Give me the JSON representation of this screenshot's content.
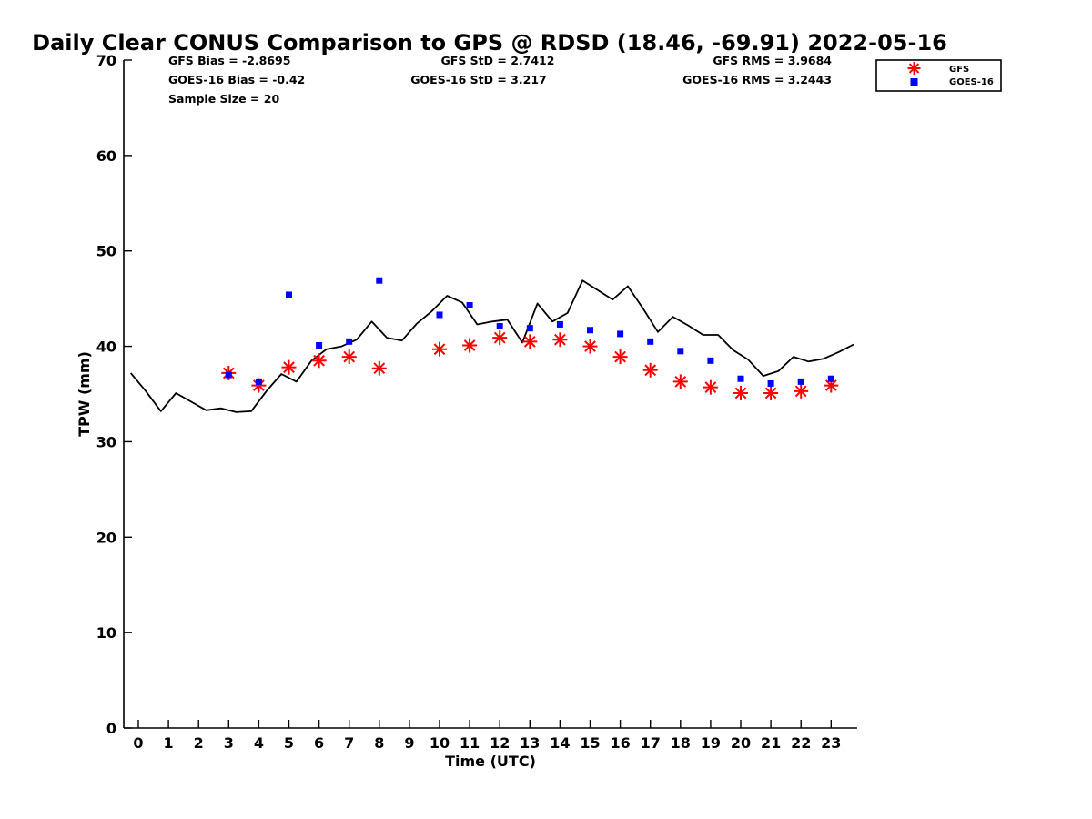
{
  "chart_data": {
    "type": "scatter",
    "title": "Daily Clear CONUS Comparison to GPS @ RDSD (18.46, -69.91) 2022-05-16",
    "xlabel": "Time (UTC)",
    "ylabel": "TPW (mm)",
    "xlim": [
      -0.5,
      23.75
    ],
    "ylim": [
      0,
      70
    ],
    "xticks": [
      "0",
      "1",
      "2",
      "3",
      "4",
      "5",
      "6",
      "7",
      "8",
      "9",
      "10",
      "11",
      "12",
      "13",
      "14",
      "15",
      "16",
      "17",
      "18",
      "19",
      "20",
      "21",
      "22",
      "23"
    ],
    "yticks": [
      "0",
      "10",
      "20",
      "30",
      "40",
      "50",
      "60",
      "70"
    ],
    "grid": false,
    "legend_position": "top-right",
    "stats": {
      "gfs_bias": "GFS Bias = -2.8695",
      "goes_bias": "GOES-16 Bias = -0.42",
      "sample_size": "Sample Size = 20",
      "gfs_std": "GFS StD = 2.7412",
      "goes_std": "GOES-16 StD = 3.217",
      "gfs_rms": "GFS RMS = 3.9684",
      "goes_rms": "GOES-16 RMS = 3.2443"
    },
    "series": [
      {
        "name": "GPS",
        "kind": "line",
        "color": "#000000",
        "x": [
          -0.25,
          0.25,
          0.75,
          1.25,
          1.75,
          2.25,
          2.75,
          3.25,
          3.75,
          4.25,
          4.75,
          5.25,
          5.75,
          6.25,
          6.75,
          7.25,
          7.75,
          8.25,
          8.75,
          9.25,
          9.75,
          10.25,
          10.75,
          11.25,
          11.75,
          12.25,
          12.75,
          13.25,
          13.75,
          14.25,
          14.75,
          15.25,
          15.75,
          16.25,
          16.75,
          17.25,
          17.75,
          18.25,
          18.75,
          19.25,
          19.75,
          20.25,
          20.75,
          21.25,
          21.75,
          22.25,
          22.75,
          23.25,
          23.75
        ],
        "y": [
          37.2,
          35.3,
          33.2,
          35.1,
          34.2,
          33.3,
          33.5,
          33.1,
          33.2,
          35.3,
          37.1,
          36.3,
          38.5,
          39.7,
          40.0,
          40.7,
          42.6,
          40.9,
          40.6,
          42.4,
          43.7,
          45.3,
          44.6,
          42.3,
          42.6,
          42.8,
          40.4,
          44.5,
          42.6,
          43.5,
          46.9,
          45.9,
          44.9,
          46.3,
          44.0,
          41.5,
          43.1,
          42.2,
          41.2,
          41.2,
          39.6,
          38.6,
          36.9,
          37.4,
          38.9,
          38.4,
          38.7,
          39.4,
          40.2
        ]
      },
      {
        "name": "GFS",
        "kind": "marker",
        "marker": "asterisk",
        "color": "#ff0000",
        "x": [
          3,
          4,
          5,
          6,
          7,
          8,
          10,
          11,
          12,
          13,
          14,
          15,
          16,
          17,
          18,
          19,
          20,
          21,
          22,
          23
        ],
        "y": [
          37.2,
          35.9,
          37.8,
          38.5,
          38.9,
          37.7,
          39.7,
          40.1,
          40.9,
          40.5,
          40.7,
          40.0,
          38.9,
          37.5,
          36.3,
          35.7,
          35.1,
          35.1,
          35.3,
          35.9
        ]
      },
      {
        "name": "GOES-16",
        "kind": "marker",
        "marker": "square",
        "color": "#0000ff",
        "x": [
          3,
          4,
          5,
          6,
          7,
          8,
          10,
          11,
          12,
          13,
          14,
          15,
          16,
          17,
          18,
          19,
          20,
          21,
          22,
          23
        ],
        "y": [
          37.0,
          36.3,
          45.4,
          40.1,
          40.5,
          46.9,
          43.3,
          44.3,
          42.1,
          41.9,
          42.3,
          41.7,
          41.3,
          40.5,
          39.5,
          38.5,
          36.6,
          36.1,
          36.3,
          36.6
        ]
      }
    ]
  }
}
